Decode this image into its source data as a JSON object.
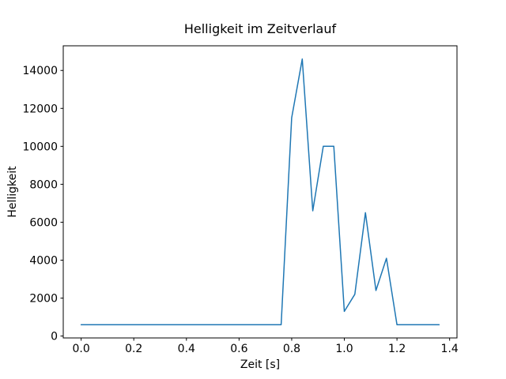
{
  "chart_data": {
    "type": "line",
    "title": "Helligkeit im Zeitverlauf",
    "xlabel": "Zeit [s]",
    "ylabel": "Helligkeit",
    "line_color": "#1f77b4",
    "grid": false,
    "legend": "none",
    "xlim": [
      -0.068,
      1.428
    ],
    "ylim": [
      -100,
      15300
    ],
    "xticks": [
      {
        "value": 0.0,
        "label": "0.0"
      },
      {
        "value": 0.2,
        "label": "0.2"
      },
      {
        "value": 0.4,
        "label": "0.4"
      },
      {
        "value": 0.6,
        "label": "0.6"
      },
      {
        "value": 0.8,
        "label": "0.8"
      },
      {
        "value": 1.0,
        "label": "1.0"
      },
      {
        "value": 1.2,
        "label": "1.2"
      },
      {
        "value": 1.4,
        "label": "1.4"
      }
    ],
    "yticks": [
      {
        "value": 0,
        "label": "0"
      },
      {
        "value": 2000,
        "label": "2000"
      },
      {
        "value": 4000,
        "label": "4000"
      },
      {
        "value": 6000,
        "label": "6000"
      },
      {
        "value": 8000,
        "label": "8000"
      },
      {
        "value": 10000,
        "label": "10000"
      },
      {
        "value": 12000,
        "label": "12000"
      },
      {
        "value": 14000,
        "label": "14000"
      }
    ],
    "x": [
      0.0,
      0.04,
      0.08,
      0.12,
      0.16,
      0.2,
      0.24,
      0.28,
      0.32,
      0.36,
      0.4,
      0.44,
      0.48,
      0.52,
      0.56,
      0.6,
      0.64,
      0.68,
      0.72,
      0.76,
      0.8,
      0.84,
      0.88,
      0.92,
      0.96,
      1.0,
      1.04,
      1.08,
      1.12,
      1.16,
      1.2,
      1.24,
      1.28,
      1.32,
      1.36
    ],
    "y": [
      600,
      600,
      600,
      600,
      600,
      600,
      600,
      600,
      600,
      600,
      600,
      600,
      600,
      600,
      600,
      600,
      600,
      600,
      600,
      600,
      11500,
      14600,
      6600,
      10000,
      10000,
      1300,
      2200,
      6500,
      2400,
      4100,
      600,
      600,
      600,
      600,
      600
    ]
  }
}
